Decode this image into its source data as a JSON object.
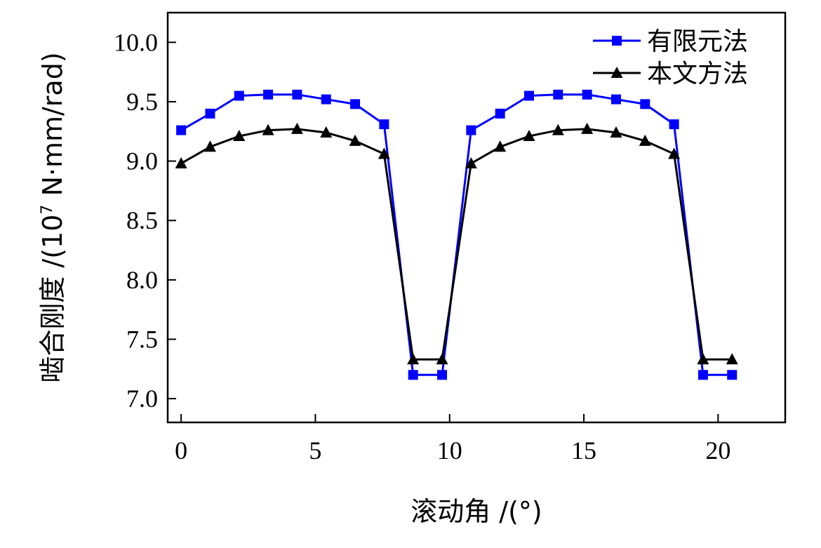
{
  "chart_data": {
    "type": "line",
    "xlabel": "滚动角 /(°)",
    "ylabel_main": "啮合刚度 /(10",
    "ylabel_exp": "7",
    "ylabel_rest": " N·mm/rad)",
    "xlim": [
      -0.5,
      22.5
    ],
    "ylim": [
      6.8,
      10.25
    ],
    "xticks": [
      0,
      5,
      10,
      15,
      20
    ],
    "xtick_labels": [
      "0",
      "5",
      "10",
      "15",
      "20"
    ],
    "yticks": [
      7.0,
      7.5,
      8.0,
      8.5,
      9.0,
      9.5,
      10.0
    ],
    "ytick_labels": [
      "7.0",
      "7.5",
      "8.0",
      "8.5",
      "9.0",
      "9.5",
      "10.0"
    ],
    "legend_position": "top-right",
    "series": [
      {
        "name": "有限元法",
        "color": "#0000ff",
        "marker": "square",
        "x": [
          0,
          1.08,
          2.16,
          3.24,
          4.32,
          5.4,
          6.48,
          7.56,
          8.64,
          9.72,
          10.8,
          11.88,
          12.96,
          14.04,
          15.12,
          16.2,
          17.28,
          18.36,
          19.44,
          20.52
        ],
        "y": [
          9.26,
          9.4,
          9.55,
          9.56,
          9.56,
          9.52,
          9.48,
          9.31,
          7.2,
          7.2,
          9.26,
          9.4,
          9.55,
          9.56,
          9.56,
          9.52,
          9.48,
          9.31,
          7.2,
          7.2
        ]
      },
      {
        "name": "本文方法",
        "color": "#000000",
        "marker": "triangle",
        "x": [
          0,
          1.08,
          2.16,
          3.24,
          4.32,
          5.4,
          6.48,
          7.56,
          8.64,
          9.72,
          10.8,
          11.88,
          12.96,
          14.04,
          15.12,
          16.2,
          17.28,
          18.36,
          19.44,
          20.52
        ],
        "y": [
          8.98,
          9.12,
          9.21,
          9.26,
          9.27,
          9.24,
          9.17,
          9.06,
          7.33,
          7.33,
          8.98,
          9.12,
          9.21,
          9.26,
          9.27,
          9.24,
          9.17,
          9.06,
          7.33,
          7.33
        ]
      }
    ]
  }
}
